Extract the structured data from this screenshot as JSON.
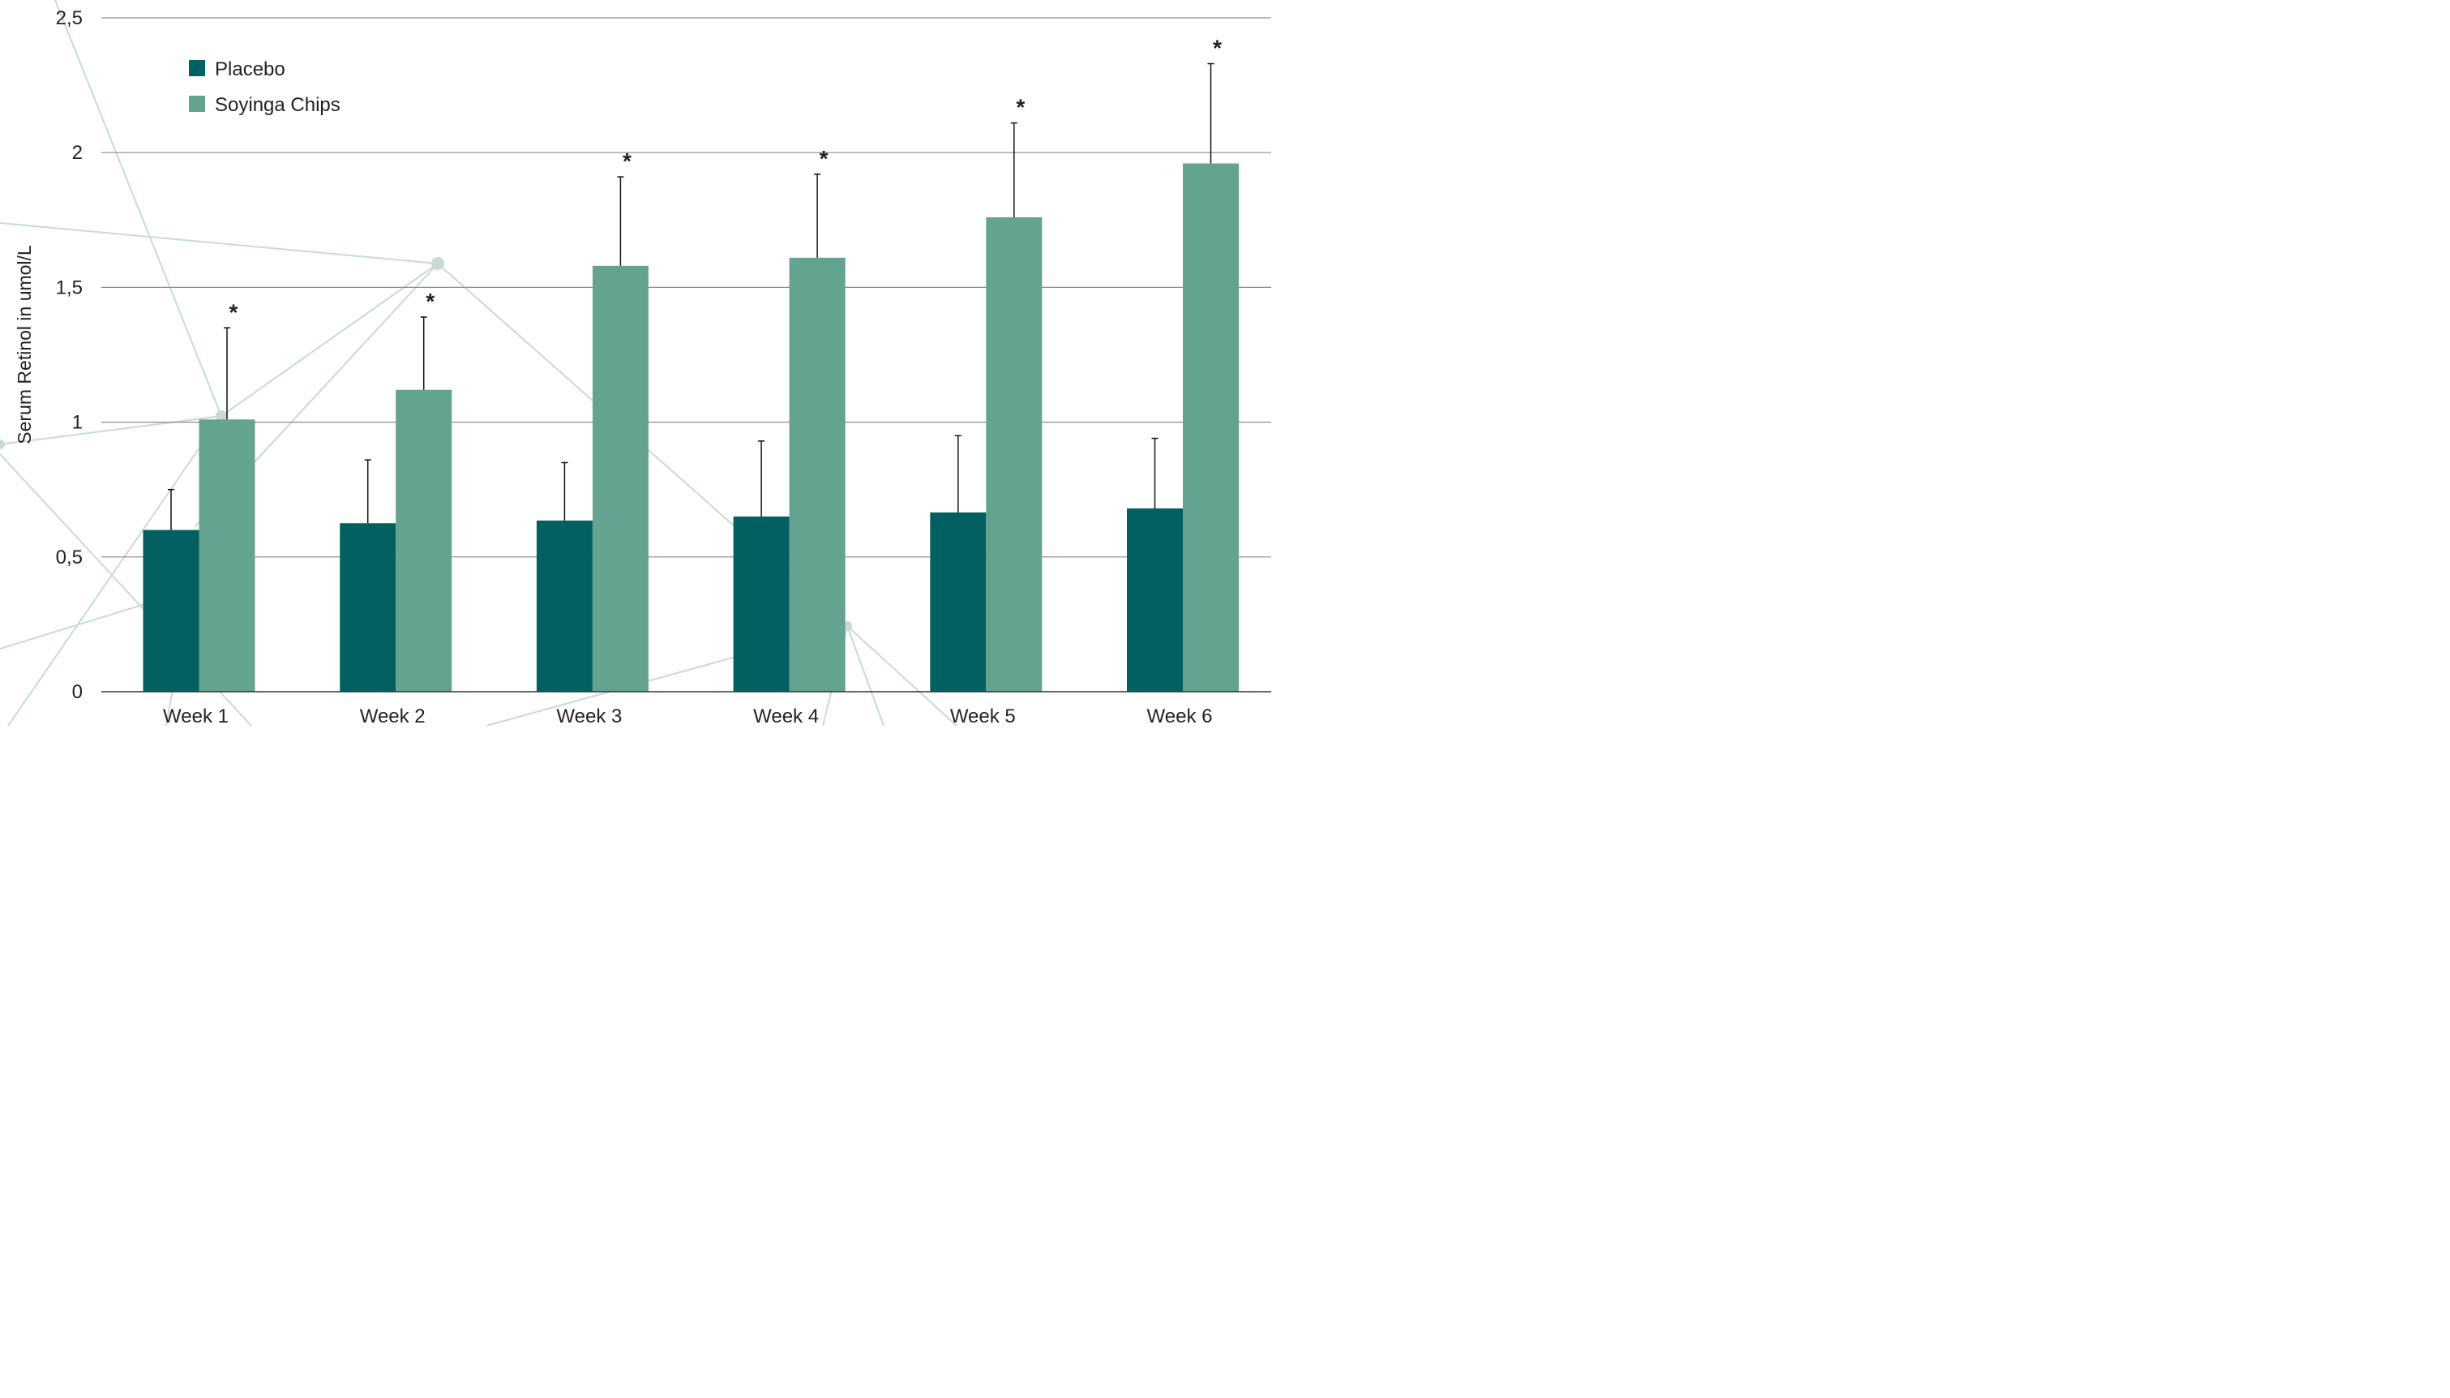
{
  "colors": {
    "placebo": "#036060",
    "soyinga": "#64a38f",
    "grid": "#8c8c8c",
    "axis": "#333333",
    "errorbar": "#111111",
    "background_lines": "#c9dad5"
  },
  "chart_data": {
    "type": "bar",
    "ylabel": "Serum Retinol in umol/L",
    "xlabel": "",
    "ylim": [
      0,
      2.5
    ],
    "yticks": [
      {
        "value": 0,
        "label": "0"
      },
      {
        "value": 0.5,
        "label": "0,5"
      },
      {
        "value": 1,
        "label": "1"
      },
      {
        "value": 1.5,
        "label": "1,5"
      },
      {
        "value": 2,
        "label": "2"
      },
      {
        "value": 2.5,
        "label": "2,5"
      }
    ],
    "grid": true,
    "legend_position": "top-left",
    "categories": [
      "Week 1",
      "Week 2",
      "Week 3",
      "Week 4",
      "Week 5",
      "Week 6"
    ],
    "series": [
      {
        "name": "Placebo",
        "values": [
          0.6,
          0.625,
          0.635,
          0.65,
          0.665,
          0.68
        ],
        "error_upper": [
          0.75,
          0.86,
          0.85,
          0.93,
          0.95,
          0.94
        ]
      },
      {
        "name": "Soyinga Chips",
        "values": [
          1.01,
          1.12,
          1.58,
          1.61,
          1.76,
          1.96
        ],
        "error_upper": [
          1.35,
          1.39,
          1.91,
          1.92,
          2.11,
          2.33
        ]
      }
    ],
    "significance_marker": "*",
    "significant": [
      true,
      true,
      true,
      true,
      true,
      true
    ]
  }
}
